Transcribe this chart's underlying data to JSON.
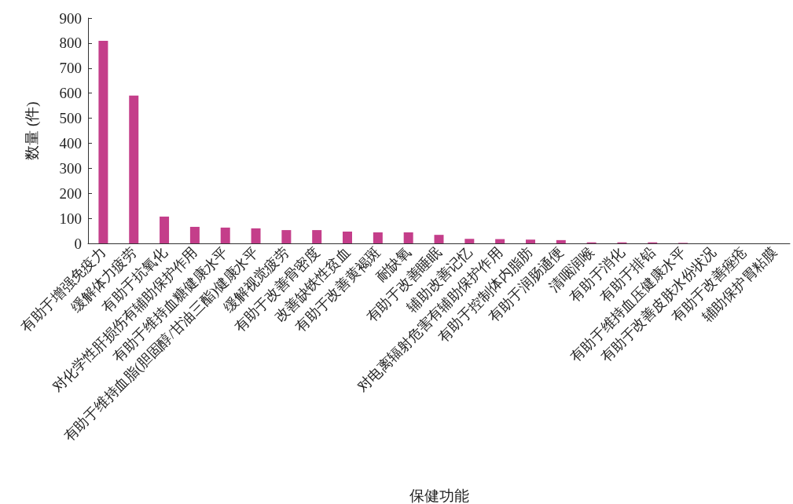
{
  "chart_data": {
    "type": "bar",
    "xlabel": "保健功能",
    "ylabel": "数量 (件)",
    "categories": [
      "有助于增强免疫力",
      "缓解体力疲劳",
      "有助于抗氧化",
      "对化学性肝损伤有辅助保护作用",
      "有助于维持血糖健康水平",
      "有助于维持血脂(胆固醇/甘油三酯)健康水平",
      "缓解视觉疲劳",
      "有助于改善骨密度",
      "改善缺铁性贫血",
      "有助于改善黄褐斑",
      "耐缺氧",
      "有助于改善睡眠",
      "辅助改善记忆",
      "对电离辐射危害有辅助保护作用",
      "有助于控制体内脂肪",
      "有助于润肠通便",
      "清咽润喉",
      "有助于消化",
      "有助于排铅",
      "有助于维持血压健康水平",
      "有助于改善皮肤水份状况",
      "有助于改善痤疮",
      "辅助保护胃粘膜"
    ],
    "values": [
      809,
      590,
      107,
      66,
      63,
      60,
      53,
      53,
      47,
      44,
      44,
      34,
      18,
      17,
      15,
      13,
      4,
      4,
      4,
      2,
      0,
      0,
      0
    ],
    "color": "#c43e8a",
    "ylim": [
      0,
      900
    ],
    "yticks": [
      0,
      100,
      200,
      300,
      400,
      500,
      600,
      700,
      800,
      900
    ],
    "grid": false
  }
}
